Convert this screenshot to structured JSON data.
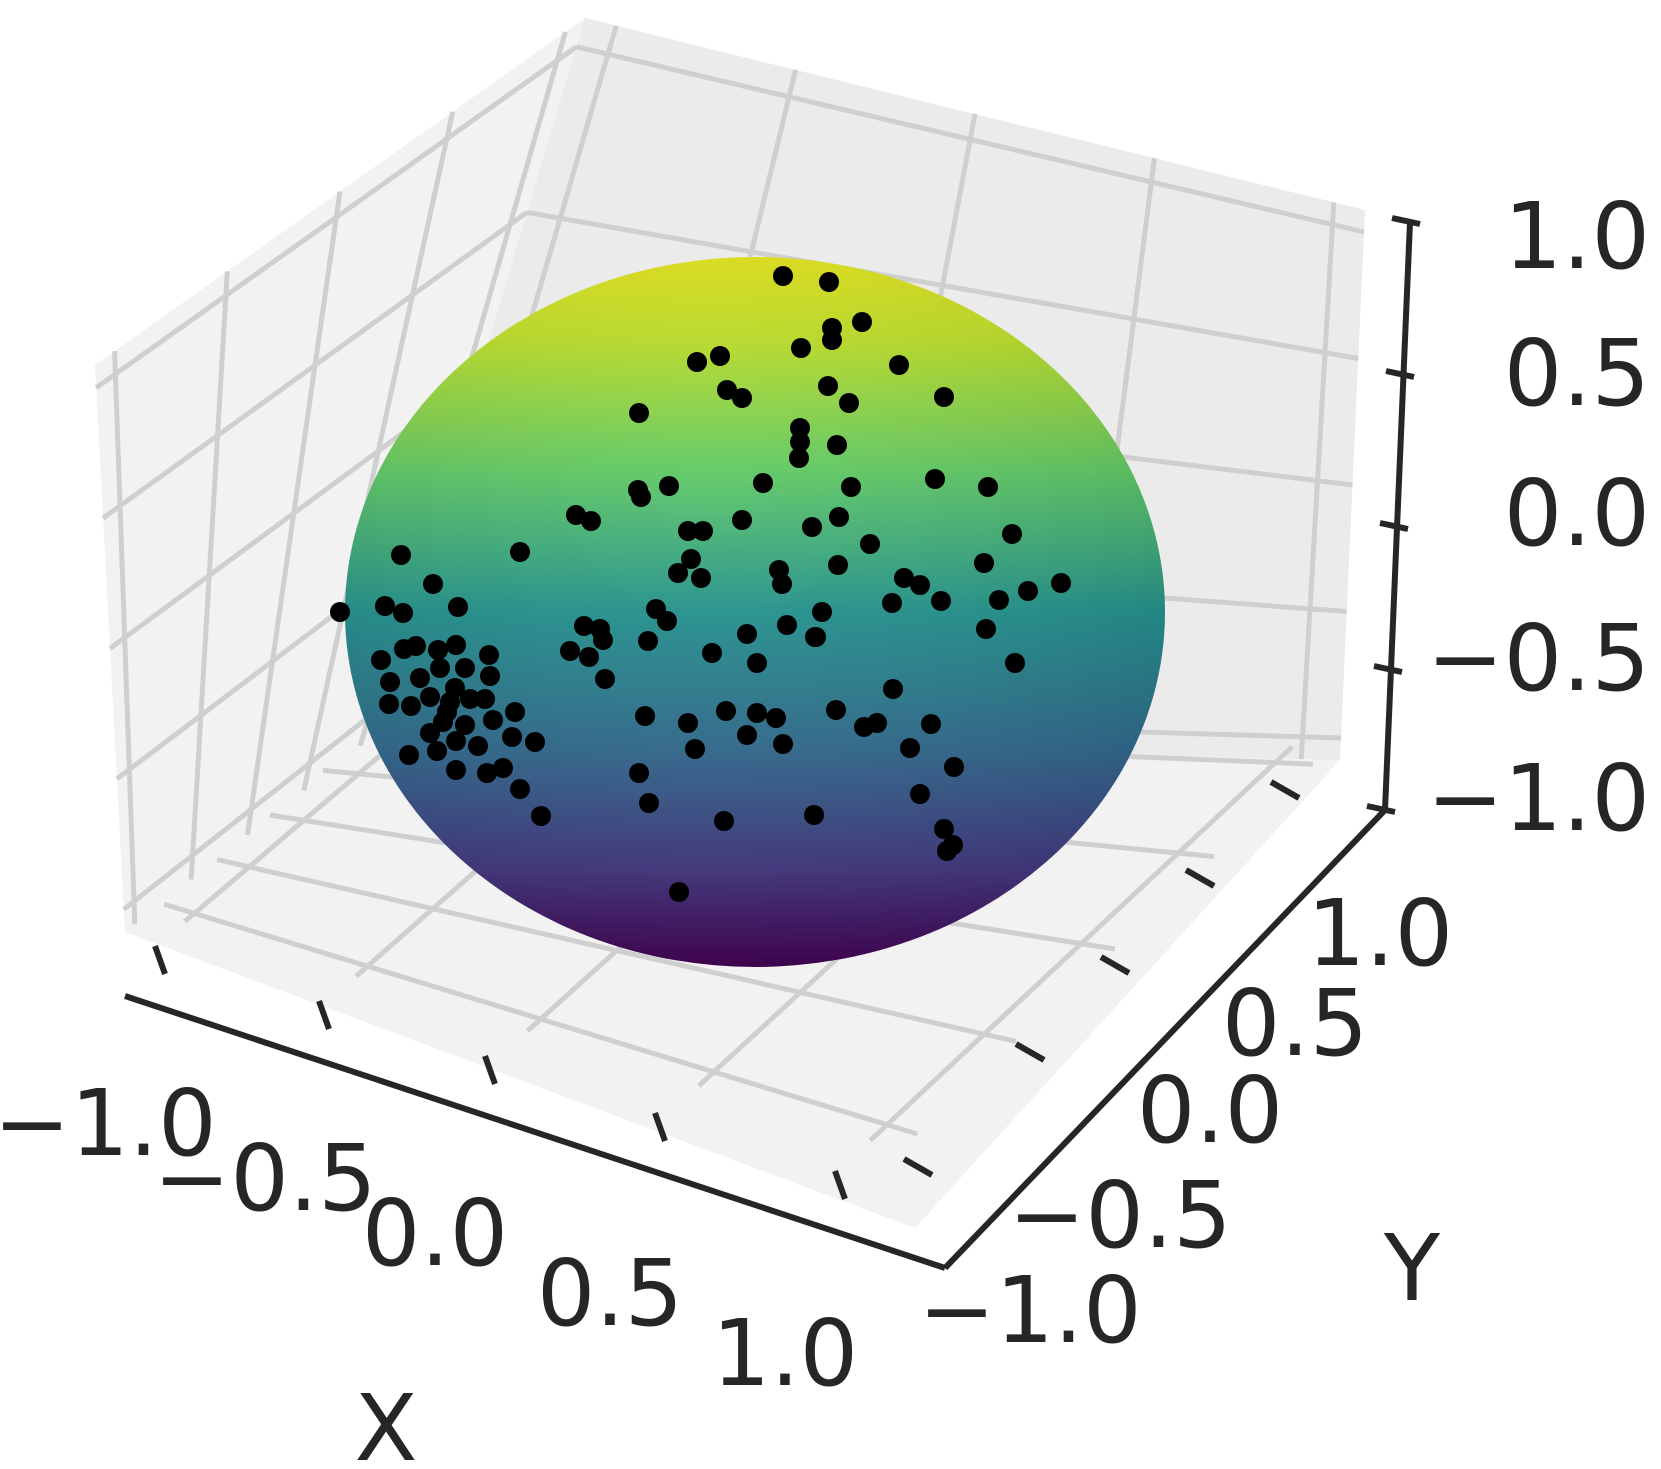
{
  "chart_data": {
    "type": "scatter",
    "subtype": "3d-scatter-on-sphere-surface",
    "title": "",
    "xlabel": "X",
    "ylabel": "Y",
    "zlabel": "",
    "xlim": [
      -1.0,
      1.0
    ],
    "ylim": [
      -1.0,
      1.0
    ],
    "zlim": [
      -1.0,
      1.0
    ],
    "x_ticks": [
      "−1.0",
      "−0.5",
      "0.0",
      "0.5",
      "1.0"
    ],
    "y_ticks": [
      "−1.0",
      "−0.5",
      "0.0",
      "0.5",
      "1.0"
    ],
    "z_ticks": [
      "−1.0",
      "−0.5",
      "0.0",
      "0.5",
      "1.0"
    ],
    "grid": true,
    "surface": {
      "shape": "unit-sphere",
      "colormap": "viridis",
      "color_by": "z",
      "colors": [
        "#440154",
        "#3b528b",
        "#21918c",
        "#5ec962",
        "#fde725"
      ]
    },
    "marker_color": "#000000",
    "points_note": "markers lie on the sphere surface; a dense cluster appears at the left edge of the visible hemisphere"
  }
}
